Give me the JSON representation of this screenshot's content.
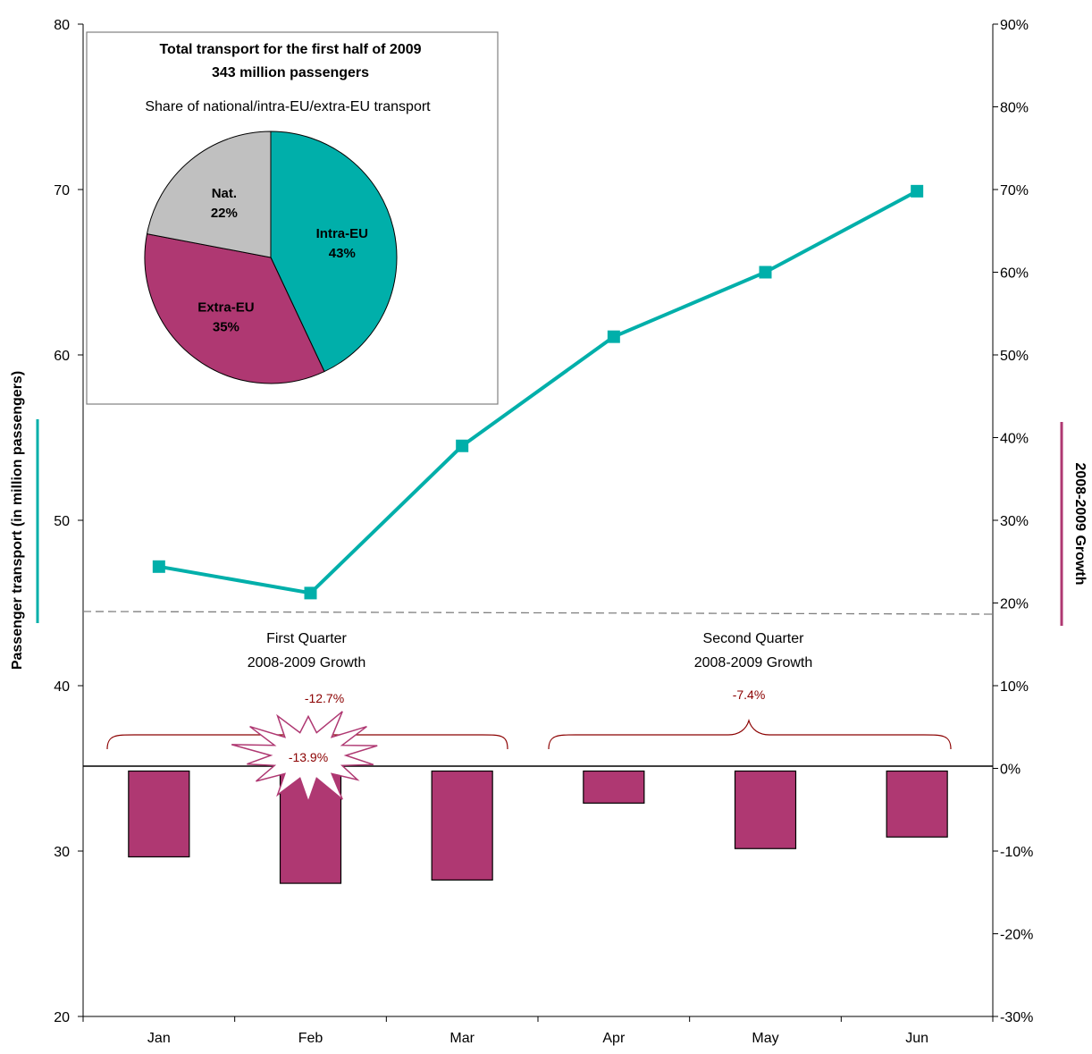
{
  "chart_data": [
    {
      "type": "line",
      "categories": [
        "Jan",
        "Feb",
        "Mar",
        "Apr",
        "May",
        "Jun"
      ],
      "series": [
        {
          "values": [
            47.2,
            45.6,
            54.5,
            61.1,
            65.0,
            69.9
          ],
          "color": "#00AFAA"
        }
      ],
      "ylabel": "Passenger transport (in million passengers)",
      "ylim": [
        20,
        80
      ],
      "yticks": [
        "20",
        "30",
        "40",
        "50",
        "60",
        "70",
        "80"
      ],
      "axis": "left"
    },
    {
      "type": "bar",
      "categories": [
        "Jan",
        "Feb",
        "Mar",
        "Apr",
        "May",
        "Jun"
      ],
      "series": [
        {
          "values": [
            -10.7,
            -13.9,
            -13.5,
            -4.2,
            -9.7,
            -8.3
          ],
          "color": "#AF3872"
        }
      ],
      "ylabel": "2008-2009 Growth",
      "ylim": [
        -30,
        90
      ],
      "yticks": [
        "-30%",
        "-20%",
        "-10%",
        "0%",
        "10%",
        "20%",
        "30%",
        "40%",
        "50%",
        "60%",
        "70%",
        "80%",
        "90%"
      ],
      "axis": "right"
    },
    {
      "type": "pie",
      "title": "Total transport for the first half of 2009",
      "subtitle": "343 million passengers",
      "caption": "Share of national/intra-EU/extra-EU  transport",
      "slices": [
        {
          "label": "Intra-EU",
          "value": 43,
          "value_label": "43%",
          "color": "#00AFAA"
        },
        {
          "label": "Extra-EU",
          "value": 35,
          "value_label": "35%",
          "color": "#AF3872"
        },
        {
          "label": "Nat.",
          "value": 22,
          "value_label": "22%",
          "color": "#C0C0C0"
        }
      ]
    }
  ],
  "annotations": {
    "q1_title": "First Quarter",
    "q1_subtitle": "2008-2009 Growth",
    "q1_value": "-12.7%",
    "q2_title": "Second Quarter",
    "q2_subtitle": "2008-2009 Growth",
    "q2_value": "-7.4%",
    "burst_value": "-13.9%",
    "annotation_color": "#8B0000"
  }
}
